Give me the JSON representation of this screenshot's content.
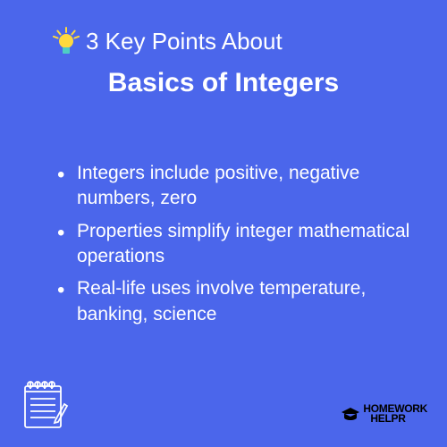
{
  "background_color": "#4b66eb",
  "text_color": "#ffffff",
  "header": {
    "top_line": "3 Key Points About",
    "top_fontsize": 26,
    "main_title": "Basics of Integers",
    "main_fontsize": 30
  },
  "bulb": {
    "bulb_color": "#ffd93d",
    "base_color": "#4ecdc4",
    "rays_color": "#ffd93d"
  },
  "points": [
    "Integers include positive, negative numbers, zero",
    "Properties simplify integer mathematical operations",
    "Real-life uses involve temperature, banking, science"
  ],
  "point_fontsize": 21,
  "notepad": {
    "stroke_color": "#ffffff"
  },
  "brand": {
    "name_line1": "HOMEWORK",
    "name_line2": "HELPR",
    "cap_color": "#000000",
    "text_color": "#000000"
  }
}
